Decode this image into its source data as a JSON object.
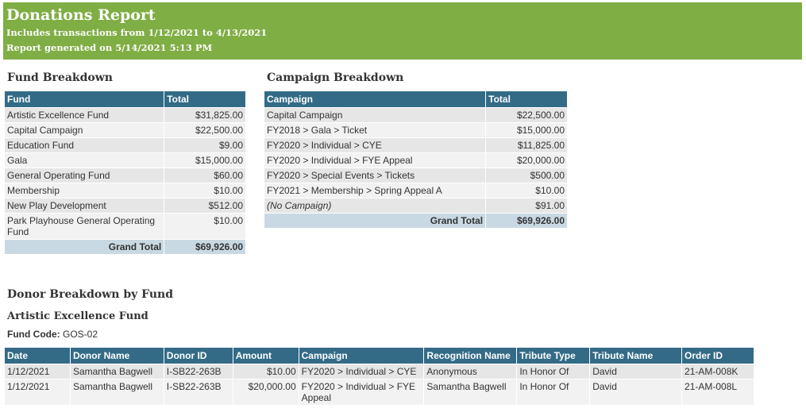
{
  "banner": {
    "title": "Donations Report",
    "range": "Includes transactions from 1/12/2021 to 4/13/2021",
    "generated": "Report generated on 5/14/2021 5:13 PM"
  },
  "fund_breakdown": {
    "heading": "Fund Breakdown",
    "col_fund": "Fund",
    "col_total": "Total",
    "rows": [
      {
        "fund": "Artistic Excellence Fund",
        "total": "$31,825.00"
      },
      {
        "fund": "Capital Campaign",
        "total": "$22,500.00"
      },
      {
        "fund": "Education Fund",
        "total": "$9.00"
      },
      {
        "fund": "Gala",
        "total": "$15,000.00"
      },
      {
        "fund": "General Operating Fund",
        "total": "$60.00"
      },
      {
        "fund": "Membership",
        "total": "$10.00"
      },
      {
        "fund": "New Play Development",
        "total": "$512.00"
      },
      {
        "fund": "Park Playhouse General Operating Fund",
        "total": "$10.00"
      }
    ],
    "grand_total_label": "Grand Total",
    "grand_total": "$69,926.00"
  },
  "campaign_breakdown": {
    "heading": "Campaign Breakdown",
    "col_campaign": "Campaign",
    "col_total": "Total",
    "rows": [
      {
        "campaign": "Capital Campaign",
        "total": "$22,500.00"
      },
      {
        "campaign": "FY2018 > Gala > Ticket",
        "total": "$15,000.00"
      },
      {
        "campaign": "FY2020 > Individual > CYE",
        "total": "$11,825.00"
      },
      {
        "campaign": "FY2020 > Individual > FYE Appeal",
        "total": "$20,000.00"
      },
      {
        "campaign": "FY2020 > Special Events > Tickets",
        "total": "$500.00"
      },
      {
        "campaign": "FY2021 > Membership > Spring Appeal A",
        "total": "$10.00"
      },
      {
        "campaign": "(No Campaign)",
        "total": "$91.00"
      }
    ],
    "grand_total_label": "Grand Total",
    "grand_total": "$69,926.00"
  },
  "donor_breakdown": {
    "heading": "Donor Breakdown by Fund",
    "fund_name": "Artistic Excellence Fund",
    "fund_code_label": "Fund Code:",
    "fund_code": "GOS-02",
    "columns": [
      "Date",
      "Donor Name",
      "Donor ID",
      "Amount",
      "Campaign",
      "Recognition Name",
      "Tribute Type",
      "Tribute Name",
      "Order ID"
    ],
    "rows": [
      {
        "date": "1/12/2021",
        "donor_name": "Samantha Bagwell",
        "donor_id": "I-SB22-263B",
        "amount": "$10.00",
        "campaign": "FY2020 > Individual > CYE",
        "recognition": "Anonymous",
        "tribute_type": "In Honor Of",
        "tribute_name": "David",
        "order_id": "21-AM-008K"
      },
      {
        "date": "1/12/2021",
        "donor_name": "Samantha Bagwell",
        "donor_id": "I-SB22-263B",
        "amount": "$20,000.00",
        "campaign": "FY2020 > Individual > FYE Appeal",
        "recognition": "Samantha Bagwell",
        "tribute_type": "In Honor Of",
        "tribute_name": "David",
        "order_id": "21-AM-008L"
      }
    ]
  },
  "colors": {
    "banner": "#7fae44",
    "header": "#336b87",
    "total_row": "#c8d9e3"
  }
}
